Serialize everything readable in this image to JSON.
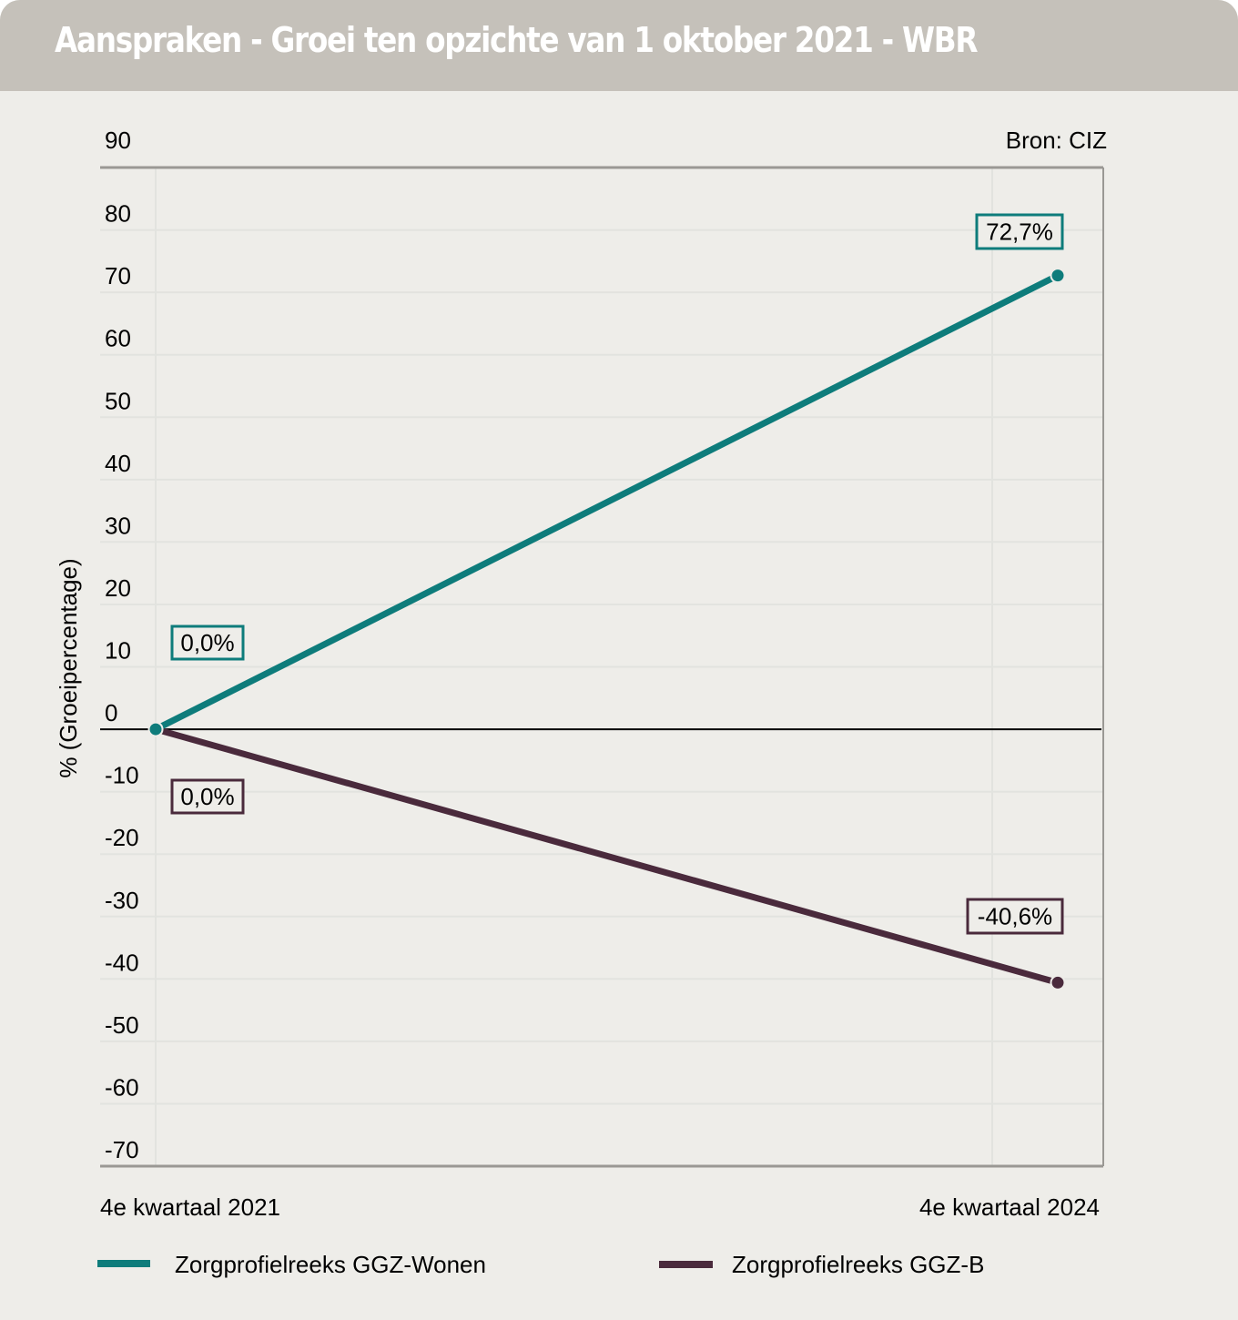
{
  "header": {
    "title": "Aanspraken - Groei ten opzichte van 1 oktober 2021 - WBR"
  },
  "source_label": "Bron: CIZ",
  "colors": {
    "header_bg": "#c5c1ba",
    "panel_bg": "#eeede9",
    "series_wonen": "#0e7c7b",
    "series_b": "#4a2a3c",
    "axis": "#9a9894",
    "grid": "#e2e3df",
    "zero_line": "#000000"
  },
  "chart_data": {
    "type": "line",
    "title": "Aanspraken - Groei ten opzichte van 1 oktober 2021 - WBR",
    "xlabel": "",
    "ylabel": "% (Groeipercentage)",
    "ylim": [
      -70,
      90
    ],
    "yticks": [
      90,
      80,
      70,
      60,
      50,
      40,
      30,
      20,
      10,
      0,
      -10,
      -20,
      -30,
      -40,
      -50,
      -60,
      -70
    ],
    "x": [
      "4e kwartaal 2021",
      "4e kwartaal 2024"
    ],
    "grid": true,
    "legend_position": "bottom",
    "series": [
      {
        "name": "Zorgprofielreeks GGZ-Wonen",
        "color": "#0e7c7b",
        "values": [
          0.0,
          72.7
        ],
        "labels": [
          "0,0%",
          "72,7%"
        ]
      },
      {
        "name": "Zorgprofielreeks GGZ-B",
        "color": "#4a2a3c",
        "values": [
          0.0,
          -40.6
        ],
        "labels": [
          "0,0%",
          "-40,6%"
        ]
      }
    ]
  }
}
